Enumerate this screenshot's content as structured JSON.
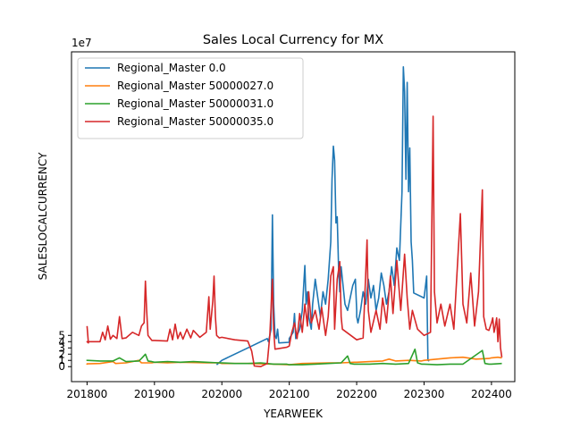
{
  "chart_data": {
    "type": "line",
    "title": "Sales Local Currency for MX",
    "xlabel": "YEARWEEK",
    "ylabel": "SALESLOCALCURRENCY",
    "y_offset_label": "1e7",
    "xlim": [
      201740,
      202418
    ],
    "ylim": [
      -2.4,
      50.4
    ],
    "y_unit_multiplier": 10000000,
    "x_ticks": [
      201800,
      201900,
      202000,
      202100,
      202200,
      202300,
      202400
    ],
    "y_ticks": [
      0,
      1,
      2,
      3,
      4,
      5
    ],
    "grid": false,
    "legend_position": "upper-left",
    "series": [
      {
        "name": "Regional_Master 0.0",
        "color": "#1f77b4",
        "points": [
          [
            201948,
            0.3
          ],
          [
            201952,
            1.0
          ],
          [
            202020,
            3.0
          ],
          [
            202035,
            4.5
          ],
          [
            202036,
            4.0
          ],
          [
            202038,
            6.0
          ],
          [
            202039,
            24.3
          ],
          [
            202040,
            10.0
          ],
          [
            202041,
            5.0
          ],
          [
            202042,
            4.5
          ],
          [
            202043,
            6.0
          ],
          [
            202044,
            3.8
          ],
          [
            202052,
            3.9
          ],
          [
            202100,
            4.5
          ],
          [
            202103,
            5.5
          ],
          [
            202104,
            8.5
          ],
          [
            202105,
            4.5
          ],
          [
            202108,
            6.0
          ],
          [
            202110,
            9.0
          ],
          [
            202112,
            16.2
          ],
          [
            202113,
            10.0
          ],
          [
            202114,
            12.0
          ],
          [
            202115,
            8.0
          ],
          [
            202117,
            6.0
          ],
          [
            202118,
            10.0
          ],
          [
            202120,
            14.0
          ],
          [
            202122,
            11.0
          ],
          [
            202124,
            8.0
          ],
          [
            202126,
            12.0
          ],
          [
            202128,
            10.0
          ],
          [
            202130,
            14.0
          ],
          [
            202132,
            20.0
          ],
          [
            202133,
            30.0
          ],
          [
            202134,
            35.3
          ],
          [
            202135,
            33.0
          ],
          [
            202136,
            23.0
          ],
          [
            202137,
            24.0
          ],
          [
            202138,
            16.0
          ],
          [
            202139,
            12.0
          ],
          [
            202140,
            16.0
          ],
          [
            202141,
            14.0
          ],
          [
            202143,
            10.0
          ],
          [
            202145,
            9.0
          ],
          [
            202147,
            11.0
          ],
          [
            202149,
            13.0
          ],
          [
            202151,
            14.0
          ],
          [
            202152,
            9.0
          ],
          [
            202200,
            8.0
          ],
          [
            202201,
            7.0
          ],
          [
            202203,
            9.0
          ],
          [
            202205,
            12.0
          ],
          [
            202207,
            10.0
          ],
          [
            202209,
            14.0
          ],
          [
            202211,
            11.0
          ],
          [
            202213,
            13.0
          ],
          [
            202215,
            9.0
          ],
          [
            202217,
            11.0
          ],
          [
            202219,
            15.0
          ],
          [
            202221,
            13.0
          ],
          [
            202223,
            10.0
          ],
          [
            202225,
            12.0
          ],
          [
            202227,
            16.0
          ],
          [
            202229,
            13.0
          ],
          [
            202231,
            19.0
          ],
          [
            202233,
            17.0
          ],
          [
            202235,
            28.0
          ],
          [
            202236,
            48.0
          ],
          [
            202237,
            44.0
          ],
          [
            202238,
            30.0
          ],
          [
            202239,
            45.5
          ],
          [
            202240,
            28.0
          ],
          [
            202241,
            35.0
          ],
          [
            202242,
            20.0
          ],
          [
            202243,
            17.0
          ],
          [
            202244,
            11.8
          ],
          [
            202300,
            11.0
          ],
          [
            202302,
            14.5
          ],
          [
            202303,
            1.0
          ],
          [
            202304,
            0.9
          ]
        ]
      },
      {
        "name": "Regional_Master 50000027.0",
        "color": "#ff7f0e",
        "points": [
          [
            201752,
            0.3
          ],
          [
            201800,
            0.45
          ],
          [
            201810,
            0.5
          ],
          [
            201820,
            0.8
          ],
          [
            201822,
            0.5
          ],
          [
            201830,
            0.6
          ],
          [
            201840,
            1.0
          ],
          [
            201842,
            0.6
          ],
          [
            201850,
            0.6
          ],
          [
            201900,
            0.7
          ],
          [
            201910,
            0.6
          ],
          [
            201920,
            0.7
          ],
          [
            201940,
            0.6
          ],
          [
            201950,
            0.6
          ],
          [
            202000,
            0.5
          ],
          [
            202010,
            0.5
          ],
          [
            202020,
            0.5
          ],
          [
            202040,
            0.4
          ],
          [
            202052,
            0.3
          ],
          [
            202110,
            0.5
          ],
          [
            202130,
            0.6
          ],
          [
            202140,
            0.6
          ],
          [
            202150,
            0.7
          ],
          [
            202200,
            0.7
          ],
          [
            202210,
            0.8
          ],
          [
            202220,
            0.9
          ],
          [
            202225,
            1.2
          ],
          [
            202230,
            0.9
          ],
          [
            202240,
            1.0
          ],
          [
            202250,
            0.9
          ],
          [
            202300,
            1.0
          ],
          [
            202310,
            1.2
          ],
          [
            202320,
            1.4
          ],
          [
            202330,
            1.5
          ],
          [
            202340,
            1.2
          ],
          [
            202350,
            1.3
          ],
          [
            202400,
            1.4
          ],
          [
            202405,
            1.5
          ],
          [
            202408,
            1.4
          ]
        ]
      },
      {
        "name": "Regional_Master 50000031.0",
        "color": "#2ca02c",
        "points": [
          [
            201752,
            1.1
          ],
          [
            201800,
            1.0
          ],
          [
            201810,
            0.9
          ],
          [
            201820,
            0.9
          ],
          [
            201825,
            1.4
          ],
          [
            201830,
            0.8
          ],
          [
            201840,
            0.9
          ],
          [
            201842,
            1.3
          ],
          [
            201845,
            2.0
          ],
          [
            201847,
            0.9
          ],
          [
            201850,
            0.8
          ],
          [
            201900,
            0.7
          ],
          [
            201910,
            0.8
          ],
          [
            201920,
            0.7
          ],
          [
            201930,
            0.8
          ],
          [
            201940,
            0.7
          ],
          [
            201950,
            0.6
          ],
          [
            202000,
            0.6
          ],
          [
            202010,
            0.5
          ],
          [
            202020,
            0.5
          ],
          [
            202030,
            0.6
          ],
          [
            202040,
            0.4
          ],
          [
            202050,
            0.4
          ],
          [
            202052,
            0.3
          ],
          [
            202110,
            0.3
          ],
          [
            202120,
            0.4
          ],
          [
            202130,
            0.5
          ],
          [
            202140,
            0.6
          ],
          [
            202145,
            1.7
          ],
          [
            202147,
            0.5
          ],
          [
            202150,
            0.4
          ],
          [
            202200,
            0.4
          ],
          [
            202210,
            0.4
          ],
          [
            202220,
            0.5
          ],
          [
            202230,
            0.4
          ],
          [
            202240,
            0.5
          ],
          [
            202245,
            2.8
          ],
          [
            202247,
            0.6
          ],
          [
            202250,
            0.4
          ],
          [
            202300,
            0.4
          ],
          [
            202310,
            0.3
          ],
          [
            202320,
            0.4
          ],
          [
            202330,
            0.4
          ],
          [
            202345,
            2.6
          ],
          [
            202347,
            0.5
          ],
          [
            202350,
            0.4
          ],
          [
            202400,
            0.4
          ],
          [
            202408,
            0.5
          ]
        ]
      },
      {
        "name": "Regional_Master 50000035.0",
        "color": "#d62728",
        "points": [
          [
            201752,
            6.5
          ],
          [
            201753,
            3.8
          ],
          [
            201800,
            4.0
          ],
          [
            201810,
            4.0
          ],
          [
            201812,
            5.5
          ],
          [
            201814,
            4.3
          ],
          [
            201816,
            6.5
          ],
          [
            201818,
            4.4
          ],
          [
            201820,
            5.0
          ],
          [
            201823,
            4.5
          ],
          [
            201825,
            8.0
          ],
          [
            201827,
            4.5
          ],
          [
            201830,
            4.6
          ],
          [
            201835,
            5.5
          ],
          [
            201840,
            5.0
          ],
          [
            201842,
            6.5
          ],
          [
            201844,
            7.0
          ],
          [
            201845,
            13.7
          ],
          [
            201846,
            9.0
          ],
          [
            201847,
            5.0
          ],
          [
            201850,
            4.2
          ],
          [
            201900,
            4.2
          ],
          [
            201910,
            4.1
          ],
          [
            201912,
            6.0
          ],
          [
            201914,
            4.3
          ],
          [
            201916,
            6.8
          ],
          [
            201918,
            4.5
          ],
          [
            201920,
            5.5
          ],
          [
            201922,
            4.4
          ],
          [
            201925,
            6.0
          ],
          [
            201928,
            4.6
          ],
          [
            201930,
            5.8
          ],
          [
            201935,
            4.7
          ],
          [
            201940,
            5.5
          ],
          [
            201942,
            11.2
          ],
          [
            201943,
            6.0
          ],
          [
            201945,
            10.5
          ],
          [
            201946,
            14.5
          ],
          [
            201947,
            8.0
          ],
          [
            201948,
            5.0
          ],
          [
            201950,
            4.6
          ],
          [
            202000,
            4.7
          ],
          [
            202010,
            4.3
          ],
          [
            202020,
            4.1
          ],
          [
            202023,
            2.5
          ],
          [
            202025,
            0.1
          ],
          [
            202030,
            0.0
          ],
          [
            202035,
            0.5
          ],
          [
            202037,
            5.0
          ],
          [
            202039,
            14.0
          ],
          [
            202040,
            6.0
          ],
          [
            202041,
            2.8
          ],
          [
            202050,
            3.1
          ],
          [
            202100,
            3.3
          ],
          [
            202102,
            5.5
          ],
          [
            202104,
            7.0
          ],
          [
            202106,
            4.5
          ],
          [
            202108,
            8.5
          ],
          [
            202110,
            5.5
          ],
          [
            202112,
            10.0
          ],
          [
            202114,
            6.5
          ],
          [
            202115,
            12.0
          ],
          [
            202117,
            7.0
          ],
          [
            202120,
            9.0
          ],
          [
            202123,
            6.0
          ],
          [
            202125,
            9.5
          ],
          [
            202128,
            5.0
          ],
          [
            202130,
            8.0
          ],
          [
            202132,
            14.5
          ],
          [
            202134,
            16.0
          ],
          [
            202135,
            6.0
          ],
          [
            202137,
            14.0
          ],
          [
            202139,
            16.8
          ],
          [
            202140,
            8.0
          ],
          [
            202141,
            6.0
          ],
          [
            202200,
            4.3
          ],
          [
            202205,
            4.6
          ],
          [
            202208,
            20.3
          ],
          [
            202209,
            9.0
          ],
          [
            202211,
            5.5
          ],
          [
            202215,
            9.0
          ],
          [
            202218,
            6.0
          ],
          [
            202220,
            11.0
          ],
          [
            202223,
            7.0
          ],
          [
            202226,
            14.5
          ],
          [
            202228,
            8.5
          ],
          [
            202231,
            17.0
          ],
          [
            202234,
            9.0
          ],
          [
            202237,
            18.0
          ],
          [
            202239,
            11.0
          ],
          [
            202241,
            6.0
          ],
          [
            202243,
            9.0
          ],
          [
            202245,
            7.5
          ],
          [
            202247,
            6.0
          ],
          [
            202300,
            5.0
          ],
          [
            202305,
            5.5
          ],
          [
            202307,
            40.1
          ],
          [
            202308,
            12.0
          ],
          [
            202310,
            7.0
          ],
          [
            202313,
            10.0
          ],
          [
            202316,
            6.5
          ],
          [
            202320,
            10.0
          ],
          [
            202323,
            6.0
          ],
          [
            202328,
            24.5
          ],
          [
            202330,
            10.0
          ],
          [
            202333,
            7.0
          ],
          [
            202336,
            15.0
          ],
          [
            202339,
            6.5
          ],
          [
            202342,
            12.0
          ],
          [
            202345,
            28.3
          ],
          [
            202346,
            8.0
          ],
          [
            202348,
            6.0
          ],
          [
            202350,
            5.8
          ],
          [
            202400,
            7.0
          ],
          [
            202401,
            7.8
          ],
          [
            202402,
            5.5
          ],
          [
            202403,
            6.5
          ],
          [
            202404,
            7.8
          ],
          [
            202405,
            4.0
          ],
          [
            202406,
            7.6
          ],
          [
            202407,
            3.0
          ],
          [
            202408,
            1.5
          ]
        ]
      }
    ]
  }
}
